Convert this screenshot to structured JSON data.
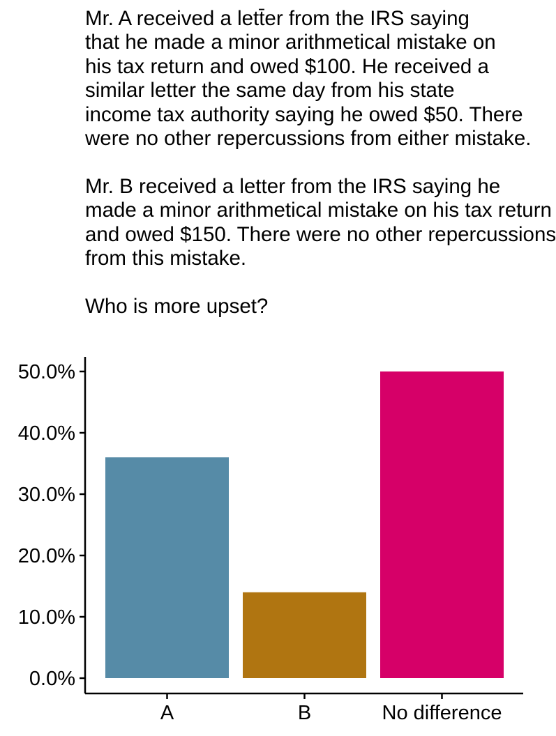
{
  "chart_data": {
    "type": "bar",
    "title": "Mr. A received a lett̄er from the IRS saying\nthat he made a minor arithmetical mistake on\nhis tax return and owed $100. He received a\nsimilar letter the same day from his state\nincome tax authority saying he owed $50. There\nwere no other repercussions from either mistake.\n\nMr. B received a letter from the IRS saying he\nmade a minor arithmetical mistake on his tax return\nand owed $150. There were no other repercussions\nfrom this mistake.\n\nWho is more upset?",
    "categories": [
      "A",
      "B",
      "No difference"
    ],
    "values": [
      36,
      14,
      50
    ],
    "colors": [
      "#568BA7",
      "#B07511",
      "#D60068"
    ],
    "value_format": "percent",
    "ylim": [
      0,
      52.3
    ],
    "yticks": [
      0,
      10,
      20,
      30,
      40,
      50
    ],
    "ytick_labels": [
      "0.0%",
      "10.0%",
      "20.0%",
      "30.0%",
      "40.0%",
      "50.0%"
    ],
    "xlabel": "",
    "ylabel": "",
    "grid": false,
    "legend": "none"
  }
}
